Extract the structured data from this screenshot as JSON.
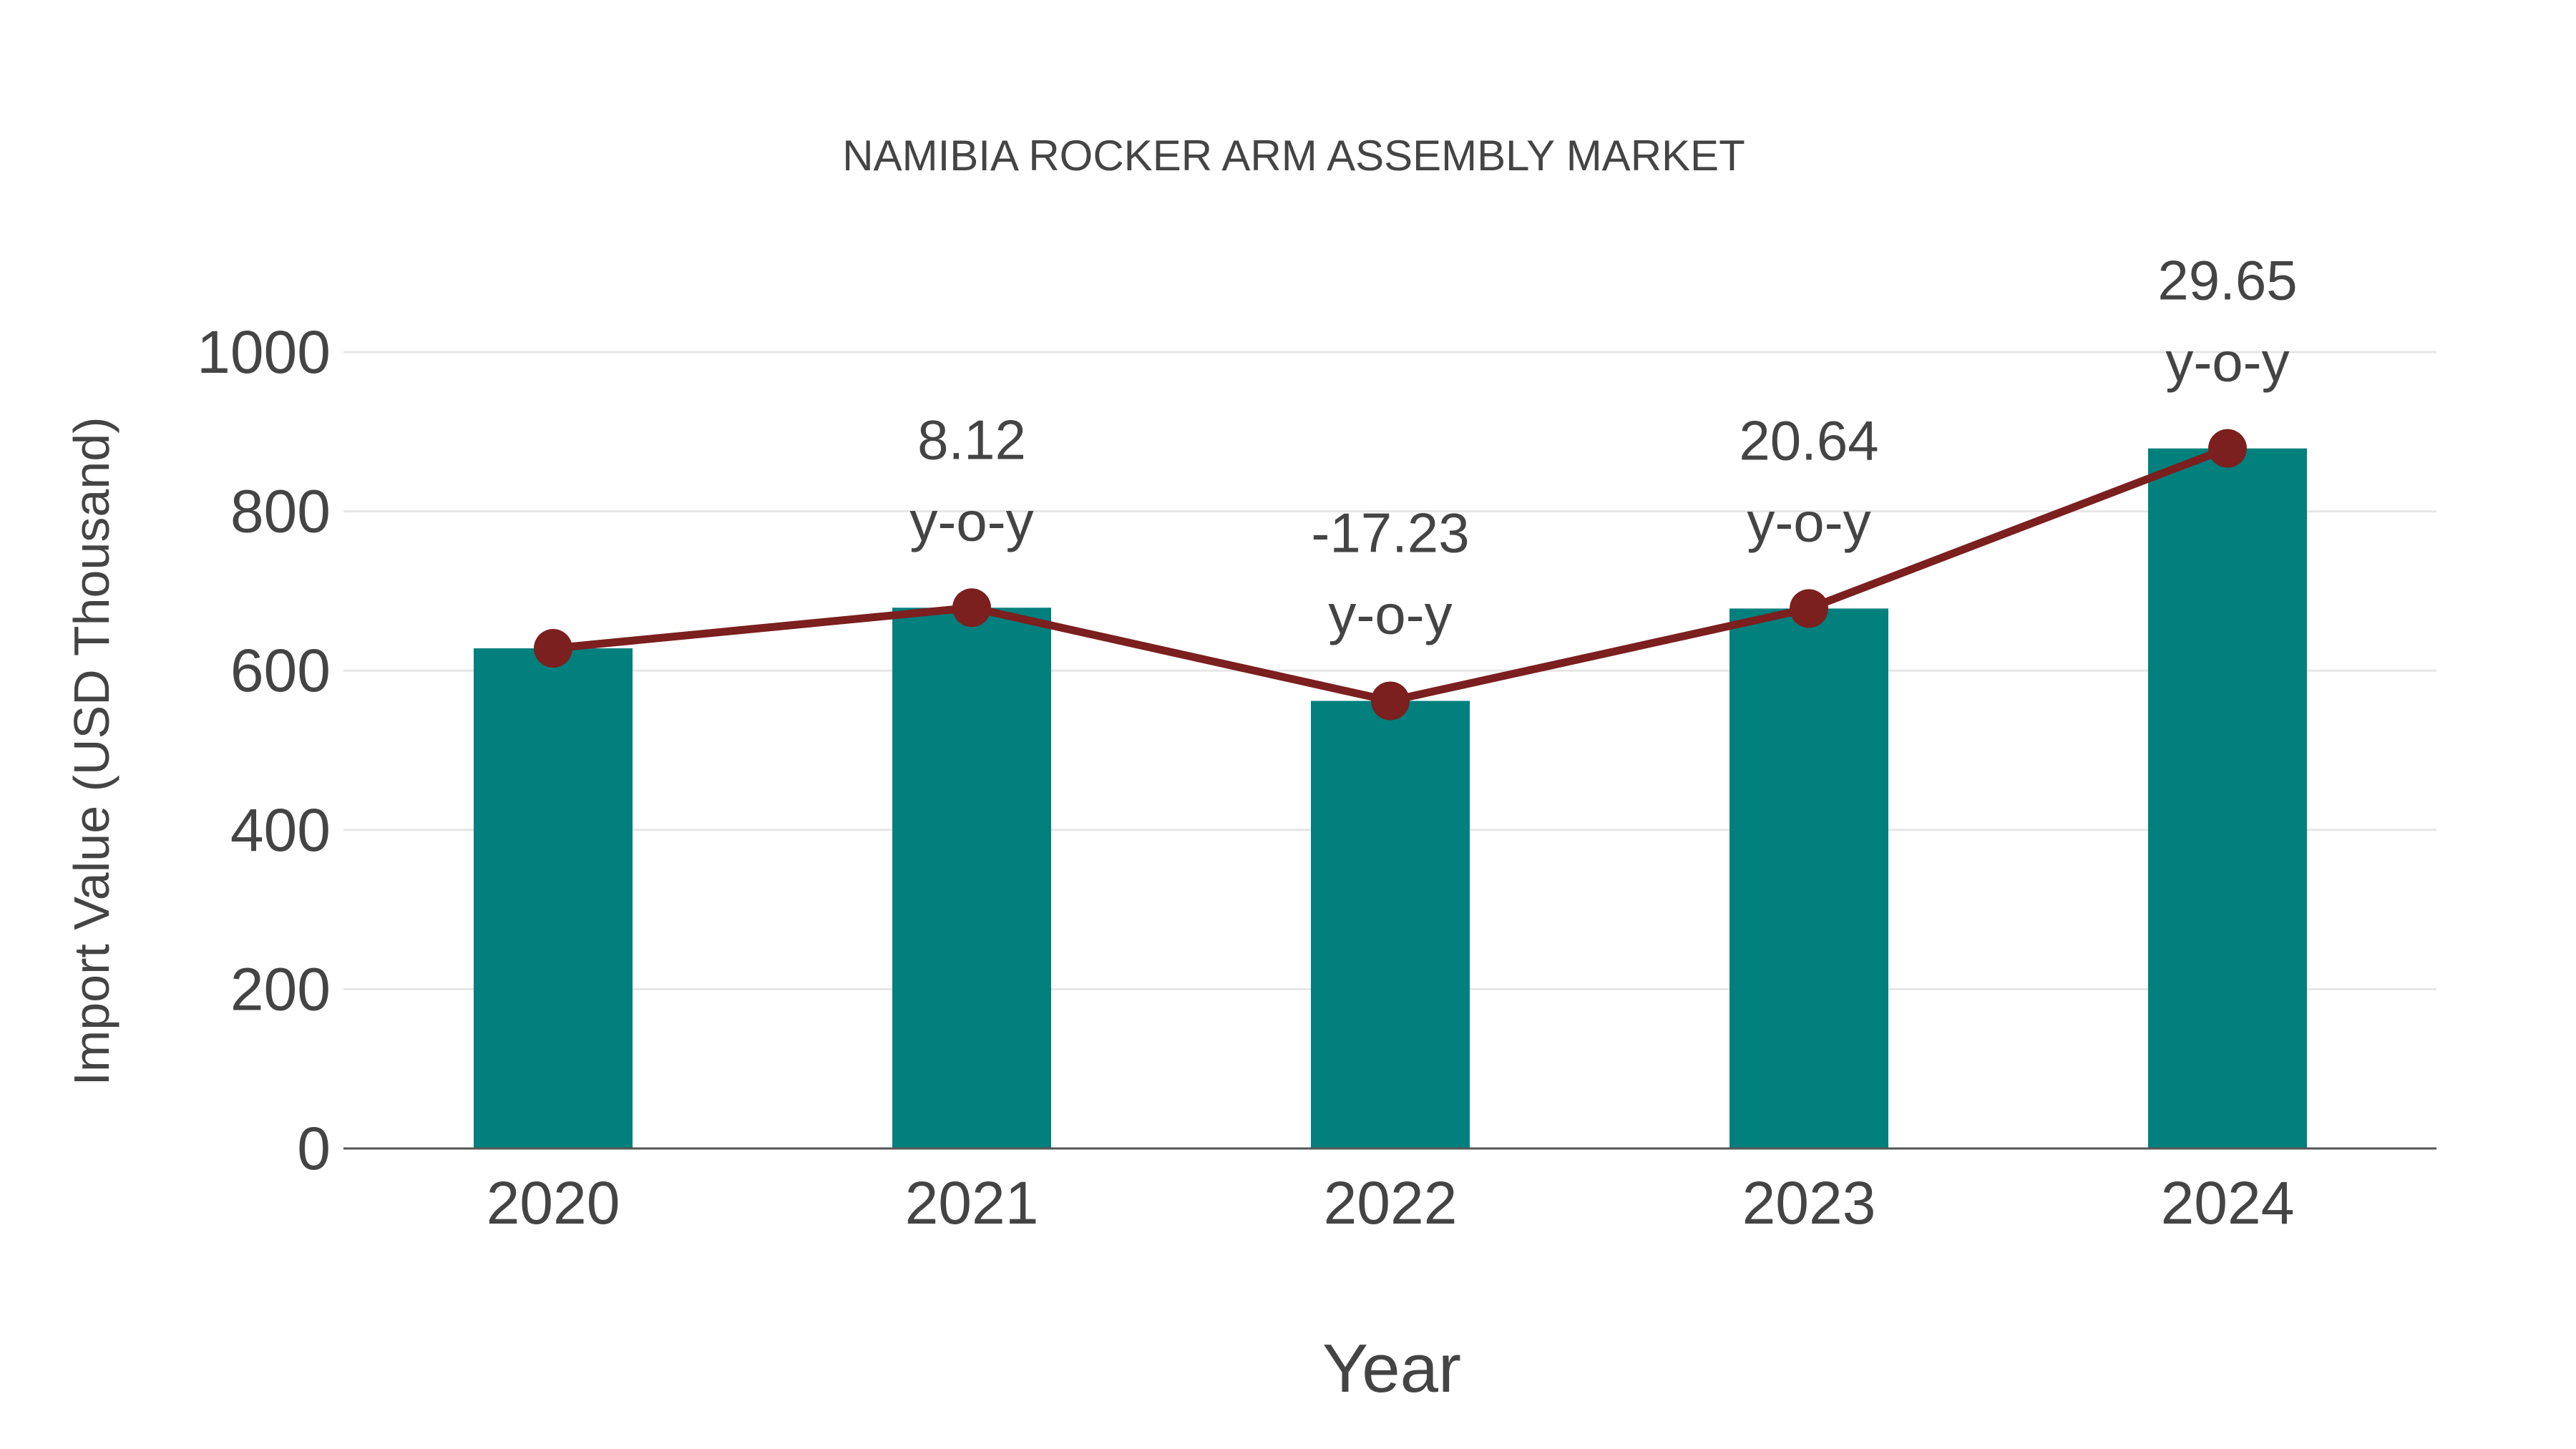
{
  "chart_data": {
    "type": "bar",
    "title": "NAMIBIA ROCKER ARM ASSEMBLY MARKET",
    "xlabel": "Year",
    "ylabel": "Import Value (USD Thousand)",
    "categories": [
      "2020",
      "2021",
      "2022",
      "2023",
      "2024"
    ],
    "series": [
      {
        "name": "Import Value",
        "type": "bar",
        "color": "#02807d",
        "values": [
          628,
          679,
          562,
          678,
          879
        ]
      },
      {
        "name": "Trend",
        "type": "line",
        "color": "#7b1f1f",
        "values": [
          628,
          679,
          562,
          678,
          879
        ]
      }
    ],
    "annotations": [
      {
        "category": "2021",
        "value": "8.12",
        "suffix": "y-o-y"
      },
      {
        "category": "2022",
        "value": "-17.23",
        "suffix": "y-o-y"
      },
      {
        "category": "2023",
        "value": "20.64",
        "suffix": "y-o-y"
      },
      {
        "category": "2024",
        "value": "29.65",
        "suffix": "y-o-y"
      }
    ],
    "yticks": [
      0,
      200,
      400,
      600,
      800,
      1000
    ],
    "ylim": [
      0,
      1000
    ],
    "grid": true,
    "legend": "none"
  },
  "colors": {
    "bar": "#02807d",
    "line": "#7b1f1f",
    "grid": "#e6e6e6",
    "axis": "#555555",
    "text": "#444444"
  }
}
